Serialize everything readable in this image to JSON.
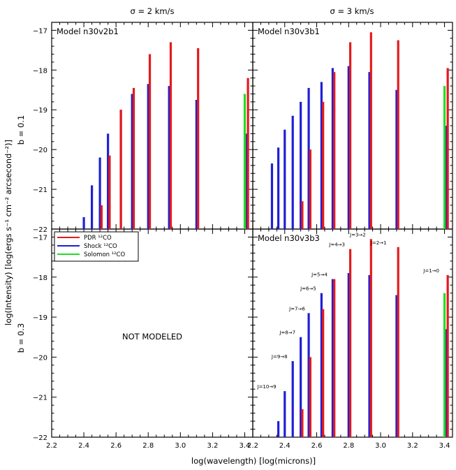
{
  "figure": {
    "y_axis_label": "log(Intensity)  [log(ergs s⁻¹ cm⁻² arcsecond⁻²)]",
    "x_axis_label": "log(wavelength)  [log(microns)]",
    "col_titles": [
      "σ = 2 km/s",
      "σ = 3 km/s"
    ],
    "row_titles": [
      "b = 0.1",
      "b = 0.3"
    ],
    "not_modeled": "NOT MODELED",
    "legend": [
      {
        "label": "PDR ¹²CO",
        "color": "#e41a1c"
      },
      {
        "label": "Shock ¹²CO",
        "color": "#1f1fd6"
      },
      {
        "label": "Solomon ¹²CO",
        "color": "#22dd22"
      }
    ],
    "colors": {
      "pdr": "#e41a1c",
      "shock": "#1f1fd6",
      "solomon": "#22dd22"
    }
  },
  "chart_data": [
    {
      "type": "bar",
      "panel": "top-left",
      "title": "Model n30v2b1",
      "xlim": [
        2.2,
        3.45
      ],
      "ylim": [
        -22,
        -16.8
      ],
      "xticks": [
        "2.2",
        "2.4",
        "2.6",
        "2.8",
        "3.0",
        "3.2",
        "3.4"
      ],
      "yticks": [
        "-22",
        "-21",
        "-20",
        "-19",
        "-18",
        "-17"
      ],
      "series": [
        {
          "name": "Shock ¹²CO",
          "x": [
            2.4,
            2.45,
            2.5,
            2.55,
            2.63,
            2.7,
            2.8,
            2.93,
            3.1,
            3.41
          ],
          "values": [
            -21.7,
            -20.9,
            -20.2,
            -19.6,
            -19.0,
            -18.6,
            -18.35,
            -18.4,
            -18.75,
            -19.6
          ]
        },
        {
          "name": "PDR ¹²CO",
          "x": [
            2.51,
            2.56,
            2.63,
            2.71,
            2.81,
            2.94,
            3.11,
            3.42
          ],
          "values": [
            -21.4,
            -20.15,
            -19.0,
            -18.45,
            -17.6,
            -17.3,
            -17.45,
            -18.2
          ]
        },
        {
          "name": "Solomon ¹²CO",
          "x": [
            3.4
          ],
          "values": [
            -18.6
          ]
        }
      ]
    },
    {
      "type": "bar",
      "panel": "top-right",
      "title": "Model n30v3b1",
      "xlim": [
        2.2,
        3.45
      ],
      "ylim": [
        -22,
        -16.8
      ],
      "xticks": [
        "2.2",
        "2.4",
        "2.6",
        "2.8",
        "3.0",
        "3.2",
        "3.4"
      ],
      "yticks": [
        "-22",
        "-21",
        "-20",
        "-19",
        "-18",
        "-17"
      ],
      "series": [
        {
          "name": "Shock ¹²CO",
          "x": [
            2.32,
            2.36,
            2.4,
            2.45,
            2.5,
            2.55,
            2.63,
            2.7,
            2.8,
            2.93,
            3.1,
            3.41
          ],
          "values": [
            -20.35,
            -19.95,
            -19.5,
            -19.15,
            -18.8,
            -18.45,
            -18.3,
            -17.95,
            -17.9,
            -18.05,
            -18.5,
            -19.4
          ]
        },
        {
          "name": "PDR ¹²CO",
          "x": [
            2.51,
            2.56,
            2.64,
            2.71,
            2.81,
            2.94,
            3.11,
            3.42
          ],
          "values": [
            -21.3,
            -20.0,
            -18.8,
            -18.05,
            -17.3,
            -17.05,
            -17.25,
            -17.95
          ]
        },
        {
          "name": "Solomon ¹²CO",
          "x": [
            3.4
          ],
          "values": [
            -18.4
          ]
        }
      ]
    },
    {
      "type": "bar",
      "panel": "bottom-right",
      "title": "Model n30v3b3",
      "xlim": [
        2.2,
        3.45
      ],
      "ylim": [
        -22,
        -16.8
      ],
      "xticks": [
        "2.2",
        "2.4",
        "2.6",
        "2.8",
        "3.0",
        "3.2",
        "3.4"
      ],
      "yticks": [
        "-22",
        "-21",
        "-20",
        "-19",
        "-18",
        "-17"
      ],
      "series": [
        {
          "name": "Shock ¹²CO",
          "x": [
            2.36,
            2.4,
            2.45,
            2.5,
            2.55,
            2.63,
            2.7,
            2.8,
            2.93,
            3.1,
            3.41
          ],
          "values": [
            -21.6,
            -20.85,
            -20.1,
            -19.5,
            -18.9,
            -18.4,
            -18.05,
            -17.9,
            -17.95,
            -18.45,
            -19.3
          ]
        },
        {
          "name": "PDR ¹²CO",
          "x": [
            2.51,
            2.56,
            2.64,
            2.71,
            2.81,
            2.94,
            3.11,
            3.42
          ],
          "values": [
            -21.3,
            -20.0,
            -18.8,
            -18.05,
            -17.3,
            -17.05,
            -17.25,
            -17.95
          ]
        },
        {
          "name": "Solomon ¹²CO",
          "x": [
            3.4
          ],
          "values": [
            -18.4
          ]
        }
      ],
      "annotations": [
        {
          "text": "J=10→9",
          "x": 2.36,
          "y": -20.85
        },
        {
          "text": "J=9→8",
          "x": 2.43,
          "y": -20.1
        },
        {
          "text": "J=8→7",
          "x": 2.48,
          "y": -19.5
        },
        {
          "text": "J=7→6",
          "x": 2.54,
          "y": -18.9
        },
        {
          "text": "J=6→5",
          "x": 2.61,
          "y": -18.4
        },
        {
          "text": "J=5→4",
          "x": 2.68,
          "y": -18.05
        },
        {
          "text": "J=4→3",
          "x": 2.79,
          "y": -17.3
        },
        {
          "text": "J=3→2",
          "x": 2.92,
          "y": -17.05
        },
        {
          "text": "J=2→1",
          "x": 3.05,
          "y": -17.25
        },
        {
          "text": "J=1→0",
          "x": 3.38,
          "y": -17.95
        }
      ]
    }
  ]
}
